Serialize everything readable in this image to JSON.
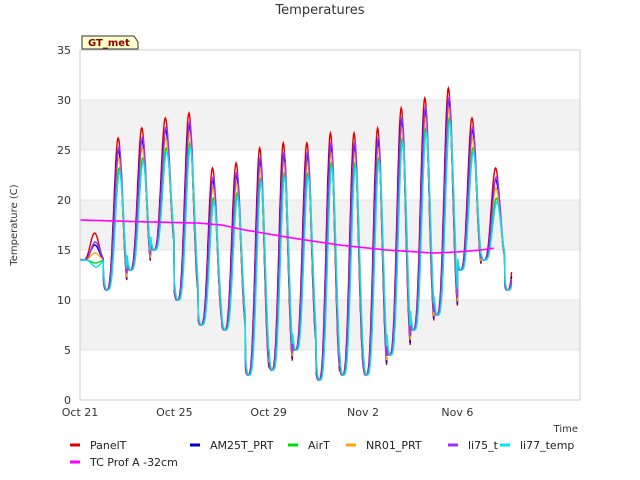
{
  "chart_data": {
    "type": "line",
    "title": "Temperatures",
    "xlabel": "Time",
    "ylabel": "Temperature (C)",
    "site_label": "GT_met",
    "ylim": [
      0,
      35
    ],
    "yticks": [
      0,
      5,
      10,
      15,
      20,
      25,
      30,
      35
    ],
    "xlim": [
      0,
      21.2
    ],
    "xticks": [
      {
        "x": 0,
        "label": "Oct 21"
      },
      {
        "x": 4,
        "label": "Oct 25"
      },
      {
        "x": 8,
        "label": "Oct 29"
      },
      {
        "x": 12,
        "label": "Nov 2"
      },
      {
        "x": 16,
        "label": "Nov 6"
      }
    ],
    "grid": true,
    "legend_position": "bottom",
    "series": [
      {
        "name": "PanelT",
        "color": "#e00000",
        "amp_offset": 1.2,
        "phase": 0.0
      },
      {
        "name": "AM25T_PRT",
        "color": "#0000cc",
        "amp_offset": 0.0,
        "phase": 0.01
      },
      {
        "name": "AirT",
        "color": "#00e000",
        "amp_offset": -1.8,
        "phase": 0.04
      },
      {
        "name": "NR01_PRT",
        "color": "#ffa500",
        "amp_offset": -0.8,
        "phase": 0.02
      },
      {
        "name": "li75_t",
        "color": "#9b30ff",
        "amp_offset": 0.3,
        "phase": 0.03
      },
      {
        "name": "li77_temp",
        "color": "#00e5ee",
        "amp_offset": -2.2,
        "phase": 0.06
      },
      {
        "name": "TC Prof A -32cm",
        "color": "#ff00ff",
        "smooth": true
      }
    ],
    "daily_extremes": [
      {
        "day": 0,
        "min": 14,
        "max": 15.5
      },
      {
        "day": 1,
        "min": 11,
        "max": 25
      },
      {
        "day": 2,
        "min": 13,
        "max": 26
      },
      {
        "day": 3,
        "min": 15,
        "max": 27
      },
      {
        "day": 4,
        "min": 10,
        "max": 27.5
      },
      {
        "day": 5,
        "min": 7.5,
        "max": 22
      },
      {
        "day": 6,
        "min": 7,
        "max": 22.5
      },
      {
        "day": 7,
        "min": 2.5,
        "max": 24
      },
      {
        "day": 8,
        "min": 3,
        "max": 24.5
      },
      {
        "day": 9,
        "min": 5,
        "max": 24.5
      },
      {
        "day": 10,
        "min": 2,
        "max": 25.5
      },
      {
        "day": 11,
        "min": 2.5,
        "max": 25.5
      },
      {
        "day": 12,
        "min": 2.5,
        "max": 26
      },
      {
        "day": 13,
        "min": 4.5,
        "max": 28
      },
      {
        "day": 14,
        "min": 7,
        "max": 29
      },
      {
        "day": 15,
        "min": 8.5,
        "max": 30
      },
      {
        "day": 16,
        "min": 13,
        "max": 27
      },
      {
        "day": 17,
        "min": 14,
        "max": 22
      },
      {
        "day": 18,
        "min": 11,
        "max": 23
      }
    ],
    "soil_profile": [
      {
        "x": 0,
        "y": 18.0
      },
      {
        "x": 3,
        "y": 17.8
      },
      {
        "x": 5,
        "y": 17.7
      },
      {
        "x": 6,
        "y": 17.5
      },
      {
        "x": 7,
        "y": 17.0
      },
      {
        "x": 9,
        "y": 16.2
      },
      {
        "x": 11,
        "y": 15.5
      },
      {
        "x": 13,
        "y": 15.0
      },
      {
        "x": 15,
        "y": 14.7
      },
      {
        "x": 16,
        "y": 14.8
      },
      {
        "x": 17,
        "y": 15.0
      },
      {
        "x": 17.6,
        "y": 15.2
      }
    ]
  }
}
